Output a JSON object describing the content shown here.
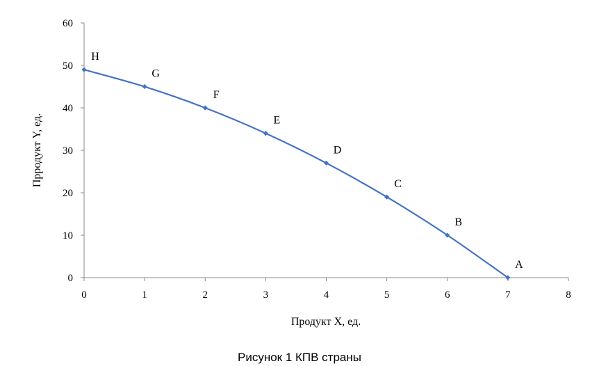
{
  "chart_data": {
    "type": "line",
    "title": "",
    "xlabel": "Продукт X, ед.",
    "ylabel": "Прродукт Y, ед.",
    "xlim": [
      0,
      8
    ],
    "ylim": [
      0,
      60
    ],
    "xticks": [
      0,
      1,
      2,
      3,
      4,
      5,
      6,
      7,
      8
    ],
    "yticks": [
      0,
      10,
      20,
      30,
      40,
      50,
      60
    ],
    "grid": false,
    "series": [
      {
        "color": "#4472C4",
        "points": [
          {
            "label": "H",
            "x": 0,
            "y": 49
          },
          {
            "label": "G",
            "x": 1,
            "y": 45
          },
          {
            "label": "F",
            "x": 2,
            "y": 40
          },
          {
            "label": "E",
            "x": 3,
            "y": 34
          },
          {
            "label": "D",
            "x": 4,
            "y": 27
          },
          {
            "label": "C",
            "x": 5,
            "y": 19
          },
          {
            "label": "B",
            "x": 6,
            "y": 10
          },
          {
            "label": "A",
            "x": 7,
            "y": 0
          }
        ]
      }
    ]
  },
  "caption": "Рисунок 1 КПВ страны"
}
